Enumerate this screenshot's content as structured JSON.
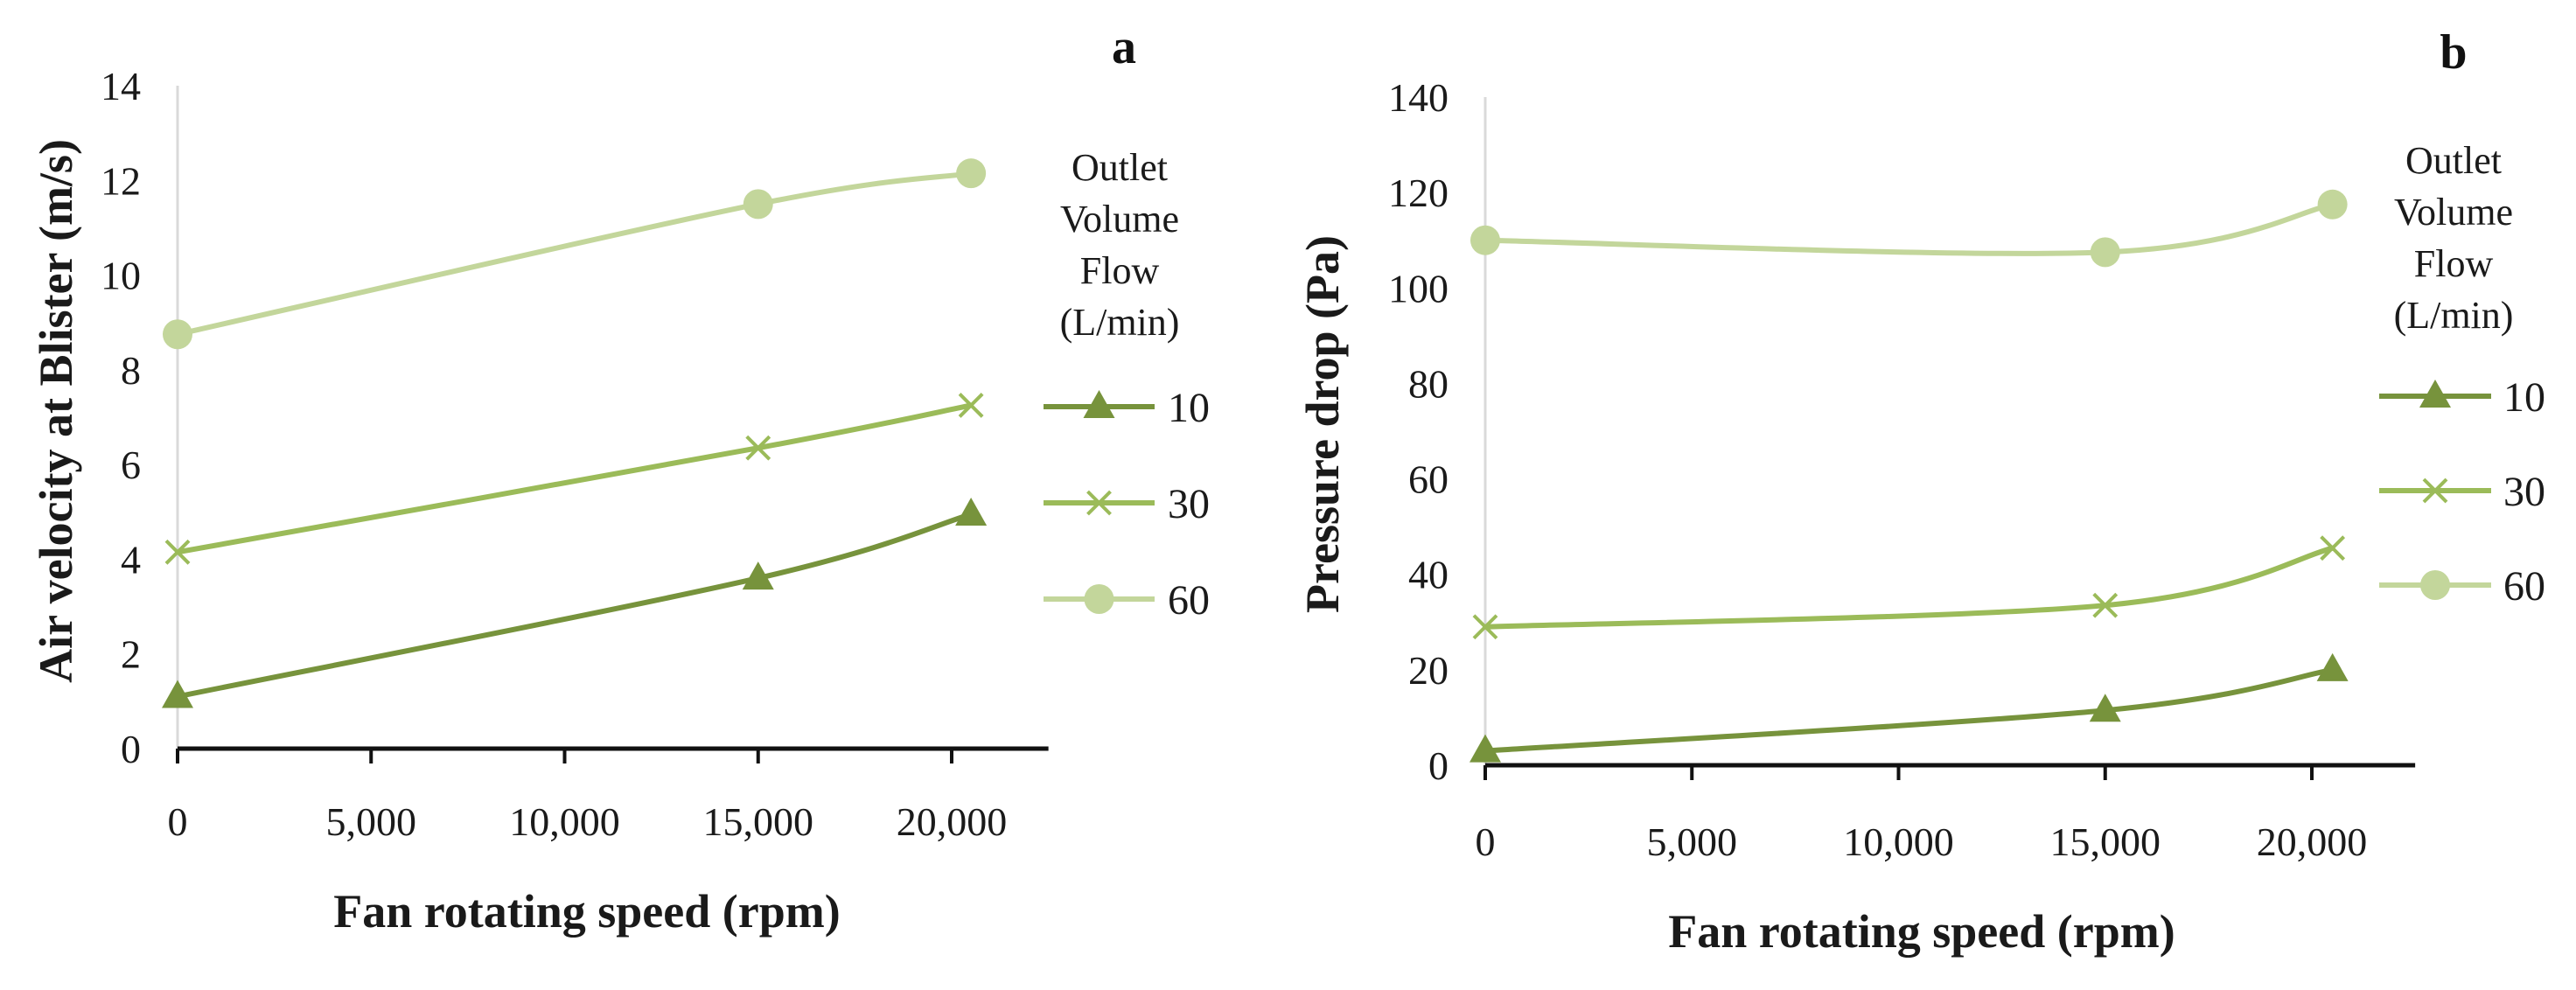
{
  "colors": {
    "s10": "#77933c",
    "s30": "#9bbb59",
    "s60": "#c3d69b",
    "axis": "#111111",
    "vaxis": "#d9d9d9"
  },
  "chart_data": [
    {
      "panel": "a",
      "type": "line",
      "xlabel": "Fan rotating speed (rpm)",
      "ylabel": "Air velocity at Blister (m/s)",
      "xlim": [
        0,
        22500
      ],
      "ylim": [
        0,
        14
      ],
      "x_ticks": [
        "0",
        "5,000",
        "10,000",
        "15,000",
        "20,000"
      ],
      "y_ticks": [
        "0",
        "2",
        "4",
        "6",
        "8",
        "10",
        "12",
        "14"
      ],
      "legend_title": [
        "Outlet",
        "Volume",
        "Flow",
        "(L/min)"
      ],
      "legend_position": "right",
      "grid": false,
      "series": [
        {
          "name": "10",
          "marker": "triangle",
          "color": "#77933c",
          "x": [
            0,
            15000,
            20500
          ],
          "y": [
            1.1,
            3.6,
            4.95
          ]
        },
        {
          "name": "30",
          "marker": "x",
          "color": "#9bbb59",
          "x": [
            0,
            15000,
            20500
          ],
          "y": [
            4.15,
            6.35,
            7.25
          ]
        },
        {
          "name": "60",
          "marker": "circle",
          "color": "#c3d69b",
          "x": [
            0,
            15000,
            20500
          ],
          "y": [
            8.75,
            11.5,
            12.15
          ]
        }
      ]
    },
    {
      "panel": "b",
      "type": "line",
      "xlabel": "Fan rotating speed (rpm)",
      "ylabel": "Pressure drop (Pa)",
      "xlim": [
        0,
        22500
      ],
      "ylim": [
        0,
        140
      ],
      "x_ticks": [
        "0",
        "5,000",
        "10,000",
        "15,000",
        "20,000"
      ],
      "y_ticks": [
        "0",
        "20",
        "40",
        "60",
        "80",
        "100",
        "120",
        "140"
      ],
      "legend_title": [
        "Outlet",
        "Volume",
        "Flow",
        "(L/min)"
      ],
      "legend_position": "right",
      "grid": false,
      "series": [
        {
          "name": "10",
          "marker": "triangle",
          "color": "#77933c",
          "x": [
            0,
            15000,
            20500
          ],
          "y": [
            3,
            11.5,
            20
          ]
        },
        {
          "name": "30",
          "marker": "x",
          "color": "#9bbb59",
          "x": [
            0,
            15000,
            20500
          ],
          "y": [
            29,
            33.5,
            45.5
          ]
        },
        {
          "name": "60",
          "marker": "circle",
          "color": "#c3d69b",
          "x": [
            0,
            15000,
            20500
          ],
          "y": [
            110,
            107.5,
            117.5
          ]
        }
      ]
    }
  ]
}
